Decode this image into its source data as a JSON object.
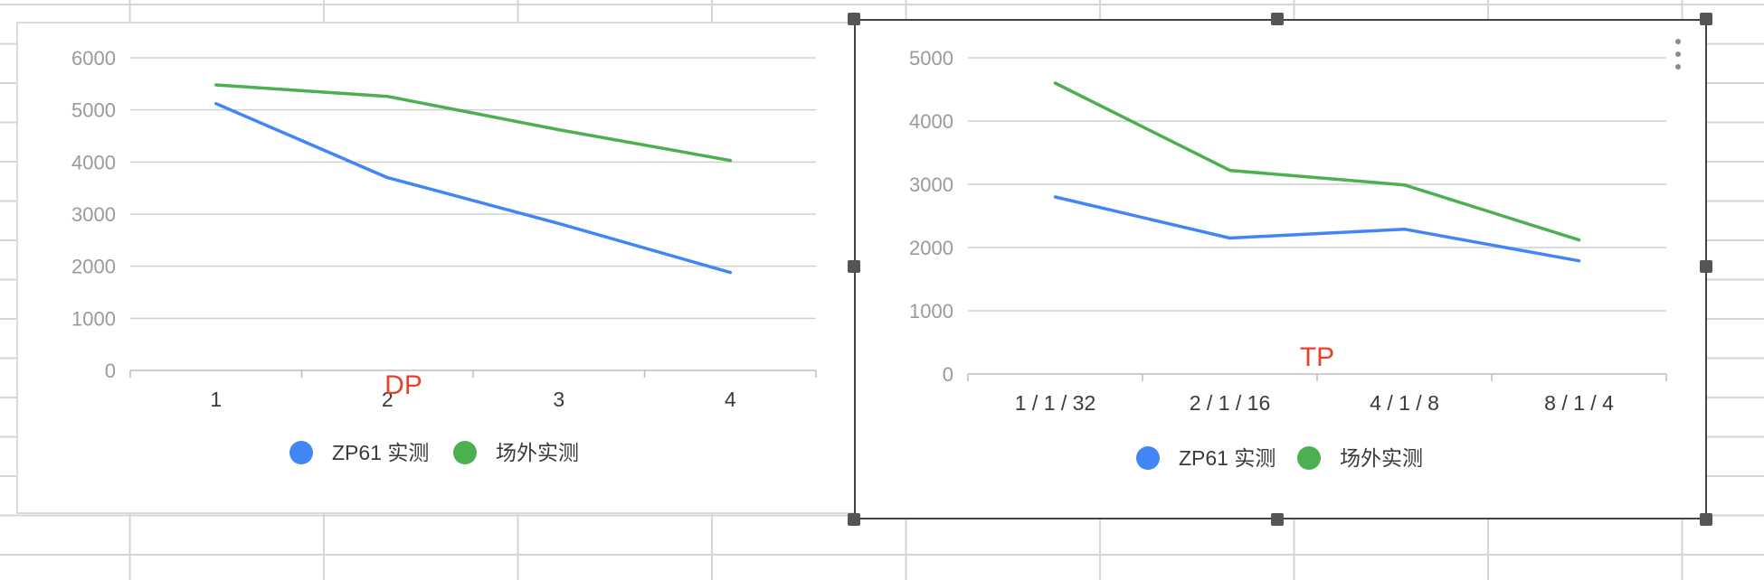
{
  "colors": {
    "series_blue": "#4285f4",
    "series_green": "#4caf50",
    "title_red": "#e8412b",
    "gridline": "#d0d0d0"
  },
  "chart_data": [
    {
      "type": "line",
      "title": "DP",
      "categories": [
        "1",
        "2",
        "3",
        "4"
      ],
      "series": [
        {
          "name": "ZP61 实测",
          "values": [
            5120,
            3700,
            2820,
            1880
          ]
        },
        {
          "name": "场外实测",
          "values": [
            5480,
            5260,
            4620,
            4030
          ]
        }
      ],
      "yticks": [
        0,
        1000,
        2000,
        3000,
        4000,
        5000,
        6000
      ],
      "ylim": [
        0,
        6000
      ],
      "grid": true,
      "legend_position": "bottom"
    },
    {
      "type": "line",
      "title": "TP",
      "categories": [
        "1 / 1 / 32",
        "2 / 1 / 16",
        "4 / 1 / 8",
        "8 / 1 / 4"
      ],
      "series": [
        {
          "name": "ZP61 实测",
          "values": [
            2800,
            2150,
            2290,
            1790
          ]
        },
        {
          "name": "场外实测",
          "values": [
            4600,
            3220,
            2990,
            2120
          ]
        }
      ],
      "yticks": [
        0,
        1000,
        2000,
        3000,
        4000,
        5000
      ],
      "ylim": [
        0,
        5000
      ],
      "grid": true,
      "legend_position": "bottom"
    }
  ]
}
